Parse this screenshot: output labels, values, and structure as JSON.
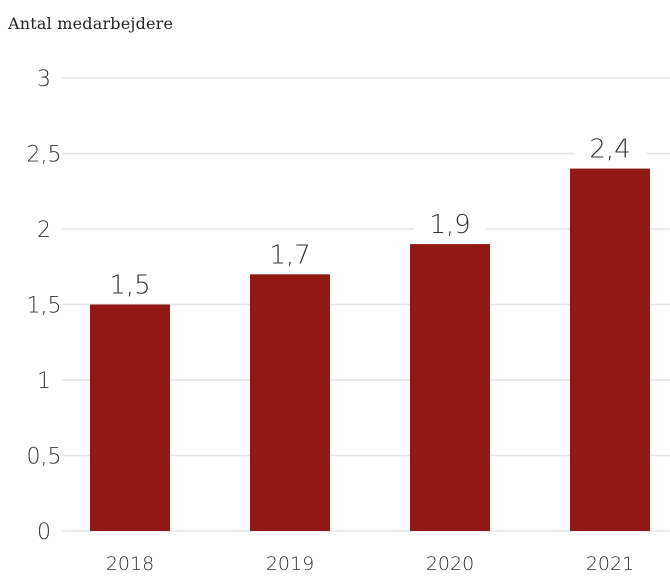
{
  "chart_data": {
    "type": "bar",
    "title": "Antal medarbejdere",
    "categories": [
      "2018",
      "2019",
      "2020",
      "2021"
    ],
    "values": [
      1.5,
      1.7,
      1.9,
      2.4
    ],
    "value_labels": [
      "1,5",
      "1,7",
      "1,9",
      "2,4"
    ],
    "ylim": [
      0,
      3
    ],
    "yticks": [
      0,
      0.5,
      1,
      1.5,
      2,
      2.5,
      3
    ],
    "ytick_labels": [
      "0",
      "0,5",
      "1",
      "1,5",
      "2",
      "2,5",
      "3"
    ],
    "xlabel": "",
    "ylabel": "",
    "grid": true,
    "colors": {
      "bar": "#911915",
      "grid": "#e6e6e6",
      "text": "#333333"
    }
  }
}
